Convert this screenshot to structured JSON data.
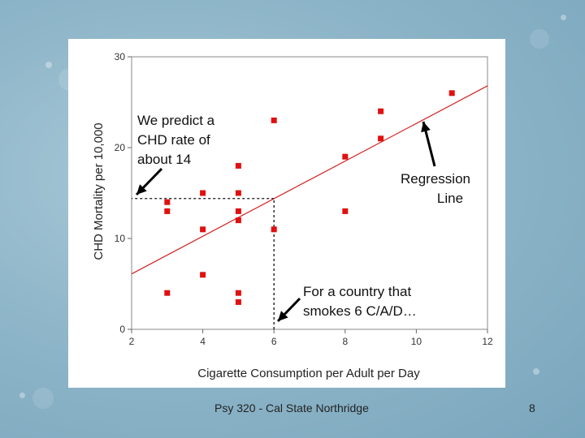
{
  "slide": {
    "footer_text": "Psy 320 - Cal State Northridge",
    "page_number": "8",
    "background_color": "#8fb6c9"
  },
  "annotations": {
    "predict_line1": "We predict a",
    "predict_line2": "CHD rate of",
    "predict_line3": "about 14",
    "regression_line1": "Regression",
    "regression_line2": "Line",
    "country_line1": "For a country that",
    "country_line2": "smokes 6 C/A/D…"
  },
  "chart_data": {
    "type": "scatter",
    "title": "",
    "xlabel": "Cigarette Consumption per Adult per Day",
    "ylabel": "CHD Mortality per 10,000",
    "xlim": [
      2,
      12
    ],
    "ylim": [
      0,
      30
    ],
    "xticks": [
      2,
      4,
      6,
      8,
      10,
      12
    ],
    "yticks": [
      0,
      10,
      20,
      30
    ],
    "point_color": "#e01010",
    "line_color": "#d42020",
    "points": [
      {
        "x": 3,
        "y": 4
      },
      {
        "x": 3,
        "y": 13
      },
      {
        "x": 3,
        "y": 14
      },
      {
        "x": 4,
        "y": 6
      },
      {
        "x": 4,
        "y": 11
      },
      {
        "x": 4,
        "y": 15
      },
      {
        "x": 5,
        "y": 3
      },
      {
        "x": 5,
        "y": 4
      },
      {
        "x": 5,
        "y": 12
      },
      {
        "x": 5,
        "y": 13
      },
      {
        "x": 5,
        "y": 15
      },
      {
        "x": 5,
        "y": 18
      },
      {
        "x": 6,
        "y": 11
      },
      {
        "x": 6,
        "y": 23
      },
      {
        "x": 8,
        "y": 13
      },
      {
        "x": 8,
        "y": 19
      },
      {
        "x": 9,
        "y": 21
      },
      {
        "x": 9,
        "y": 24
      },
      {
        "x": 11,
        "y": 26
      }
    ],
    "regression": {
      "x0": 2,
      "y0": 6.1,
      "x1": 12,
      "y1": 26.8
    },
    "prediction": {
      "x": 6,
      "y": 14.4
    }
  }
}
